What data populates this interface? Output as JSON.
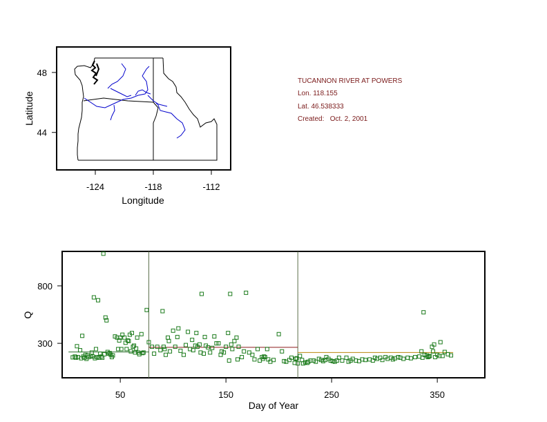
{
  "info": {
    "station": "TUCANNON RIVER AT POWERS",
    "lon": "Lon. 118.155",
    "lat": "Lat. 46.538333",
    "created": "Created:   Oct. 2, 2001"
  },
  "colors": {
    "points": "#1a7a1a",
    "river": "#0000cc",
    "divider": "#5a6e4a",
    "segment1": "#2e6e2e",
    "segment2": "#8b1a1a",
    "segment3": "#b8860b",
    "info_text": "#7a1a1a"
  },
  "chart_data": [
    {
      "type": "map",
      "xlabel": "Longitude",
      "ylabel": "Latitude",
      "xlim": [
        -128,
        -110
      ],
      "ylim": [
        41.5,
        49.7
      ],
      "x_ticks": [
        -124,
        -118,
        -112
      ],
      "y_ticks": [
        44,
        48
      ],
      "x_tick_labels": [
        "-124",
        "-118",
        "-112"
      ],
      "y_tick_labels": [
        "44",
        "48"
      ],
      "grid": false
    },
    {
      "type": "scatter",
      "xlabel": "Day of Year",
      "ylabel": "Q",
      "xlim": [
        -5,
        395
      ],
      "ylim": [
        0,
        1100
      ],
      "x_ticks": [
        50,
        150,
        250,
        350
      ],
      "y_ticks": [
        300,
        800
      ],
      "x_tick_labels": [
        "50",
        "150",
        "250",
        "350"
      ],
      "y_tick_labels": [
        "300",
        "800"
      ],
      "grid": false,
      "dividers": [
        77,
        218
      ],
      "segments": [
        {
          "x": [
            1,
            77
          ],
          "y": 225
        },
        {
          "x": [
            77,
            218
          ],
          "y": 265
        },
        {
          "x": [
            218,
            365
          ],
          "y": 220
        }
      ],
      "points": [
        [
          5,
          178
        ],
        [
          7,
          185
        ],
        [
          8,
          175
        ],
        [
          9,
          275
        ],
        [
          10,
          180
        ],
        [
          12,
          240
        ],
        [
          13,
          170
        ],
        [
          14,
          365
        ],
        [
          15,
          185
        ],
        [
          16,
          175
        ],
        [
          17,
          200
        ],
        [
          18,
          165
        ],
        [
          19,
          195
        ],
        [
          20,
          180
        ],
        [
          22,
          190
        ],
        [
          23,
          220
        ],
        [
          24,
          185
        ],
        [
          25,
          700
        ],
        [
          26,
          170
        ],
        [
          27,
          250
        ],
        [
          28,
          180
        ],
        [
          29,
          675
        ],
        [
          30,
          175
        ],
        [
          31,
          210
        ],
        [
          32,
          185
        ],
        [
          33,
          175
        ],
        [
          34,
          1080
        ],
        [
          35,
          205
        ],
        [
          36,
          525
        ],
        [
          37,
          500
        ],
        [
          38,
          225
        ],
        [
          39,
          210
        ],
        [
          40,
          215
        ],
        [
          41,
          200
        ],
        [
          42,
          180
        ],
        [
          43,
          195
        ],
        [
          45,
          360
        ],
        [
          47,
          350
        ],
        [
          48,
          250
        ],
        [
          49,
          325
        ],
        [
          50,
          350
        ],
        [
          51,
          250
        ],
        [
          52,
          375
        ],
        [
          54,
          350
        ],
        [
          55,
          305
        ],
        [
          56,
          250
        ],
        [
          57,
          325
        ],
        [
          58,
          320
        ],
        [
          59,
          375
        ],
        [
          60,
          230
        ],
        [
          61,
          390
        ],
        [
          62,
          270
        ],
        [
          63,
          280
        ],
        [
          64,
          220
        ],
        [
          65,
          255
        ],
        [
          66,
          350
        ],
        [
          67,
          220
        ],
        [
          68,
          205
        ],
        [
          70,
          380
        ],
        [
          71,
          215
        ],
        [
          72,
          220
        ],
        [
          75,
          590
        ],
        [
          77,
          310
        ],
        [
          80,
          270
        ],
        [
          82,
          210
        ],
        [
          85,
          270
        ],
        [
          88,
          240
        ],
        [
          90,
          580
        ],
        [
          91,
          270
        ],
        [
          92,
          250
        ],
        [
          93,
          200
        ],
        [
          95,
          350
        ],
        [
          96,
          320
        ],
        [
          97,
          230
        ],
        [
          100,
          410
        ],
        [
          102,
          270
        ],
        [
          104,
          355
        ],
        [
          105,
          430
        ],
        [
          107,
          235
        ],
        [
          110,
          200
        ],
        [
          112,
          285
        ],
        [
          114,
          400
        ],
        [
          116,
          250
        ],
        [
          118,
          330
        ],
        [
          119,
          240
        ],
        [
          121,
          280
        ],
        [
          122,
          390
        ],
        [
          123,
          270
        ],
        [
          125,
          290
        ],
        [
          126,
          220
        ],
        [
          127,
          730
        ],
        [
          129,
          210
        ],
        [
          130,
          355
        ],
        [
          131,
          280
        ],
        [
          133,
          265
        ],
        [
          135,
          220
        ],
        [
          137,
          260
        ],
        [
          139,
          360
        ],
        [
          141,
          300
        ],
        [
          143,
          300
        ],
        [
          145,
          200
        ],
        [
          146,
          230
        ],
        [
          148,
          220
        ],
        [
          150,
          270
        ],
        [
          152,
          390
        ],
        [
          153,
          150
        ],
        [
          154,
          730
        ],
        [
          155,
          290
        ],
        [
          156,
          250
        ],
        [
          158,
          320
        ],
        [
          160,
          350
        ],
        [
          161,
          160
        ],
        [
          162,
          270
        ],
        [
          165,
          180
        ],
        [
          167,
          230
        ],
        [
          169,
          740
        ],
        [
          172,
          220
        ],
        [
          175,
          200
        ],
        [
          177,
          160
        ],
        [
          180,
          250
        ],
        [
          182,
          150
        ],
        [
          184,
          180
        ],
        [
          185,
          165
        ],
        [
          186,
          185
        ],
        [
          187,
          180
        ],
        [
          189,
          250
        ],
        [
          190,
          160
        ],
        [
          192,
          140
        ],
        [
          195,
          155
        ],
        [
          200,
          380
        ],
        [
          203,
          230
        ],
        [
          205,
          145
        ],
        [
          207,
          140
        ],
        [
          210,
          155
        ],
        [
          212,
          175
        ],
        [
          215,
          130
        ],
        [
          216,
          165
        ],
        [
          217,
          170
        ],
        [
          218,
          125
        ],
        [
          220,
          190
        ],
        [
          222,
          155
        ],
        [
          223,
          125
        ],
        [
          225,
          135
        ],
        [
          227,
          130
        ],
        [
          228,
          140
        ],
        [
          230,
          150
        ],
        [
          233,
          150
        ],
        [
          235,
          140
        ],
        [
          238,
          165
        ],
        [
          240,
          155
        ],
        [
          242,
          145
        ],
        [
          244,
          155
        ],
        [
          245,
          180
        ],
        [
          247,
          165
        ],
        [
          249,
          150
        ],
        [
          251,
          145
        ],
        [
          253,
          140
        ],
        [
          255,
          150
        ],
        [
          257,
          175
        ],
        [
          260,
          150
        ],
        [
          264,
          175
        ],
        [
          266,
          140
        ],
        [
          268,
          150
        ],
        [
          270,
          165
        ],
        [
          273,
          150
        ],
        [
          276,
          145
        ],
        [
          279,
          160
        ],
        [
          282,
          155
        ],
        [
          286,
          160
        ],
        [
          289,
          150
        ],
        [
          291,
          175
        ],
        [
          293,
          165
        ],
        [
          296,
          175
        ],
        [
          298,
          155
        ],
        [
          301,
          180
        ],
        [
          303,
          165
        ],
        [
          306,
          175
        ],
        [
          308,
          160
        ],
        [
          310,
          170
        ],
        [
          313,
          180
        ],
        [
          315,
          175
        ],
        [
          318,
          165
        ],
        [
          322,
          175
        ],
        [
          325,
          170
        ],
        [
          329,
          180
        ],
        [
          333,
          185
        ],
        [
          335,
          230
        ],
        [
          336,
          175
        ],
        [
          337,
          570
        ],
        [
          338,
          200
        ],
        [
          340,
          195
        ],
        [
          341,
          180
        ],
        [
          342,
          185
        ],
        [
          343,
          190
        ],
        [
          345,
          270
        ],
        [
          346,
          230
        ],
        [
          347,
          290
        ],
        [
          348,
          180
        ],
        [
          350,
          200
        ],
        [
          352,
          190
        ],
        [
          353,
          310
        ],
        [
          355,
          190
        ],
        [
          357,
          225
        ],
        [
          360,
          205
        ],
        [
          363,
          195
        ]
      ]
    }
  ]
}
